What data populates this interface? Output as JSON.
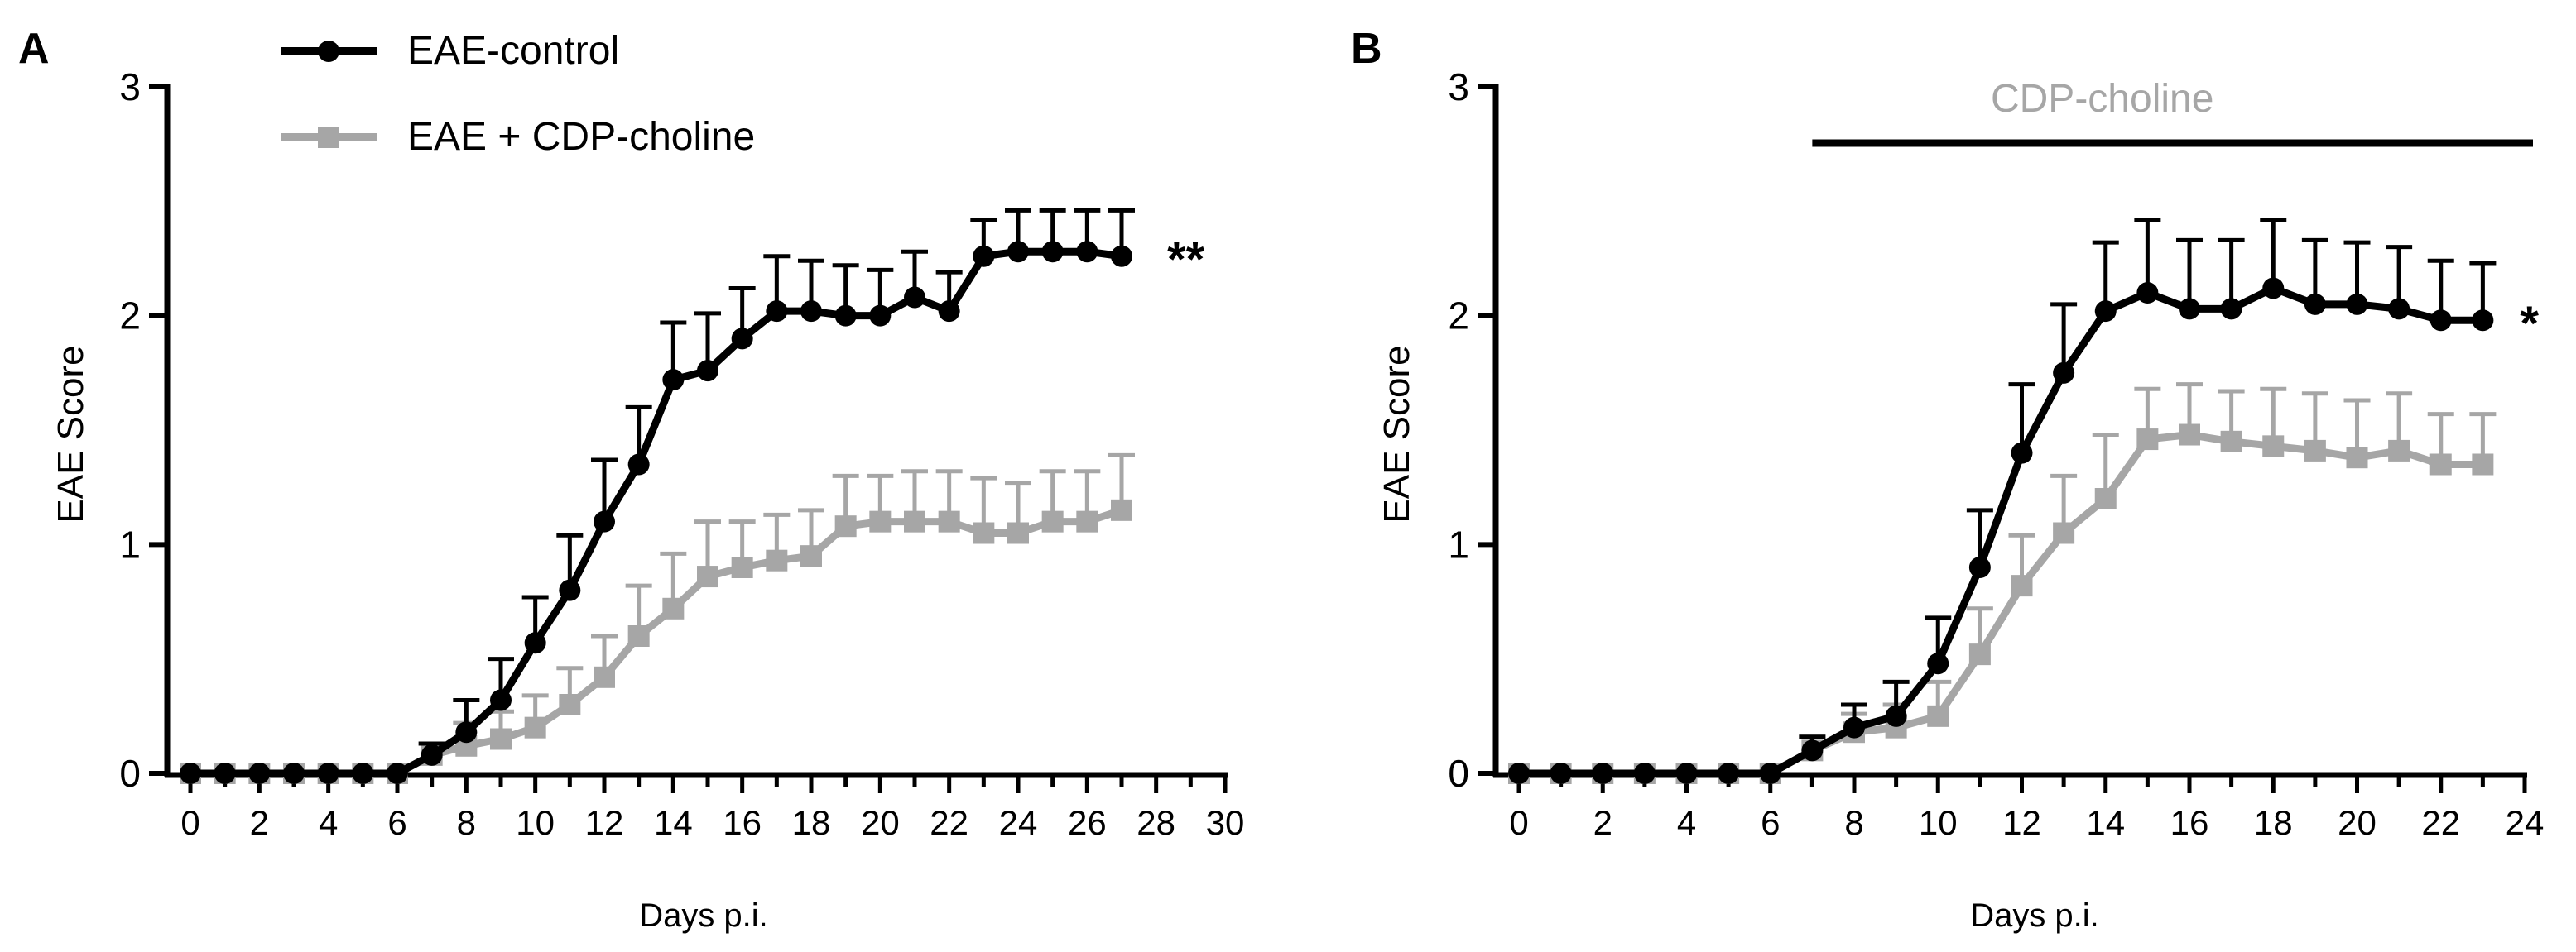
{
  "colors": {
    "control": "#000000",
    "treated": "#a6a6a6",
    "axis": "#000000"
  },
  "panels": [
    {
      "letter": "A",
      "xlabel": "Days p.i.",
      "ylabel": "EAE Score"
    },
    {
      "letter": "B",
      "xlabel": "Days p.i.",
      "ylabel": "EAE Score"
    }
  ],
  "legend": {
    "items": [
      "EAE-control",
      "EAE + CDP-choline"
    ]
  },
  "chart_data": [
    {
      "type": "line",
      "panel": "A",
      "xlabel": "Days p.i.",
      "ylabel": "EAE Score",
      "xlim": [
        0,
        30
      ],
      "ylim": [
        0,
        3
      ],
      "xticks": [
        "0",
        "2",
        "4",
        "6",
        "8",
        "10",
        "12",
        "14",
        "16",
        "18",
        "20",
        "22",
        "24",
        "26",
        "28",
        "30"
      ],
      "yticks": [
        "0",
        "1",
        "2",
        "3"
      ],
      "legend_position": "top-left",
      "significance": "**",
      "series": [
        {
          "name": "EAE-control",
          "marker": "circle",
          "x": [
            0,
            1,
            2,
            3,
            4,
            5,
            6,
            7,
            8,
            9,
            10,
            11,
            12,
            13,
            14,
            15,
            16,
            17,
            18,
            19,
            20,
            21,
            22,
            23,
            24,
            25,
            26,
            27
          ],
          "y": [
            0,
            0,
            0,
            0,
            0,
            0,
            0,
            0.08,
            0.18,
            0.32,
            0.57,
            0.8,
            1.1,
            1.35,
            1.72,
            1.76,
            1.9,
            2.02,
            2.02,
            2.0,
            2.0,
            2.08,
            2.02,
            2.26,
            2.28,
            2.28,
            2.28,
            2.26
          ],
          "err": [
            0,
            0,
            0,
            0,
            0,
            0,
            0,
            0.05,
            0.14,
            0.18,
            0.2,
            0.24,
            0.27,
            0.25,
            0.25,
            0.25,
            0.22,
            0.24,
            0.22,
            0.22,
            0.2,
            0.2,
            0.17,
            0.16,
            0.18,
            0.18,
            0.18,
            0.2
          ]
        },
        {
          "name": "EAE + CDP-choline",
          "marker": "square",
          "x": [
            0,
            1,
            2,
            3,
            4,
            5,
            6,
            7,
            8,
            9,
            10,
            11,
            12,
            13,
            14,
            15,
            16,
            17,
            18,
            19,
            20,
            21,
            22,
            23,
            24,
            25,
            26,
            27
          ],
          "y": [
            0,
            0,
            0,
            0,
            0,
            0,
            0,
            0.08,
            0.12,
            0.15,
            0.2,
            0.3,
            0.42,
            0.6,
            0.72,
            0.86,
            0.9,
            0.93,
            0.95,
            1.08,
            1.1,
            1.1,
            1.1,
            1.05,
            1.05,
            1.1,
            1.1,
            1.15
          ],
          "err": [
            0,
            0,
            0,
            0,
            0,
            0,
            0,
            0.05,
            0.1,
            0.12,
            0.14,
            0.16,
            0.18,
            0.22,
            0.24,
            0.24,
            0.2,
            0.2,
            0.2,
            0.22,
            0.2,
            0.22,
            0.22,
            0.24,
            0.22,
            0.22,
            0.22,
            0.24
          ]
        }
      ]
    },
    {
      "type": "line",
      "panel": "B",
      "xlabel": "Days p.i.",
      "ylabel": "EAE Score",
      "xlim": [
        0,
        24
      ],
      "ylim": [
        0,
        3
      ],
      "xticks": [
        "0",
        "2",
        "4",
        "6",
        "8",
        "10",
        "12",
        "14",
        "16",
        "18",
        "20",
        "22",
        "24"
      ],
      "yticks": [
        "0",
        "1",
        "2",
        "3"
      ],
      "significance": "*",
      "treatment_bar": {
        "label": "CDP-choline",
        "from": 7,
        "to": 24
      },
      "series": [
        {
          "name": "EAE-control",
          "marker": "circle",
          "x": [
            0,
            1,
            2,
            3,
            4,
            5,
            6,
            7,
            8,
            9,
            10,
            11,
            12,
            13,
            14,
            15,
            16,
            17,
            18,
            19,
            20,
            21,
            22,
            23
          ],
          "y": [
            0,
            0,
            0,
            0,
            0,
            0,
            0,
            0.1,
            0.2,
            0.25,
            0.48,
            0.9,
            1.4,
            1.75,
            2.02,
            2.1,
            2.03,
            2.03,
            2.12,
            2.05,
            2.05,
            2.03,
            1.98,
            1.98
          ],
          "err": [
            0,
            0,
            0,
            0,
            0,
            0,
            0,
            0.06,
            0.1,
            0.15,
            0.2,
            0.25,
            0.3,
            0.3,
            0.3,
            0.32,
            0.3,
            0.3,
            0.3,
            0.28,
            0.27,
            0.27,
            0.26,
            0.25
          ]
        },
        {
          "name": "EAE + CDP-choline",
          "marker": "square",
          "x": [
            0,
            1,
            2,
            3,
            4,
            5,
            6,
            7,
            8,
            9,
            10,
            11,
            12,
            13,
            14,
            15,
            16,
            17,
            18,
            19,
            20,
            21,
            22,
            23
          ],
          "y": [
            0,
            0,
            0,
            0,
            0,
            0,
            0,
            0.1,
            0.18,
            0.2,
            0.25,
            0.52,
            0.82,
            1.05,
            1.2,
            1.46,
            1.48,
            1.45,
            1.43,
            1.41,
            1.38,
            1.41,
            1.35,
            1.35
          ],
          "err": [
            0,
            0,
            0,
            0,
            0,
            0,
            0,
            0.06,
            0.08,
            0.1,
            0.15,
            0.2,
            0.22,
            0.25,
            0.28,
            0.22,
            0.22,
            0.22,
            0.25,
            0.25,
            0.25,
            0.25,
            0.22,
            0.22
          ]
        }
      ]
    }
  ]
}
